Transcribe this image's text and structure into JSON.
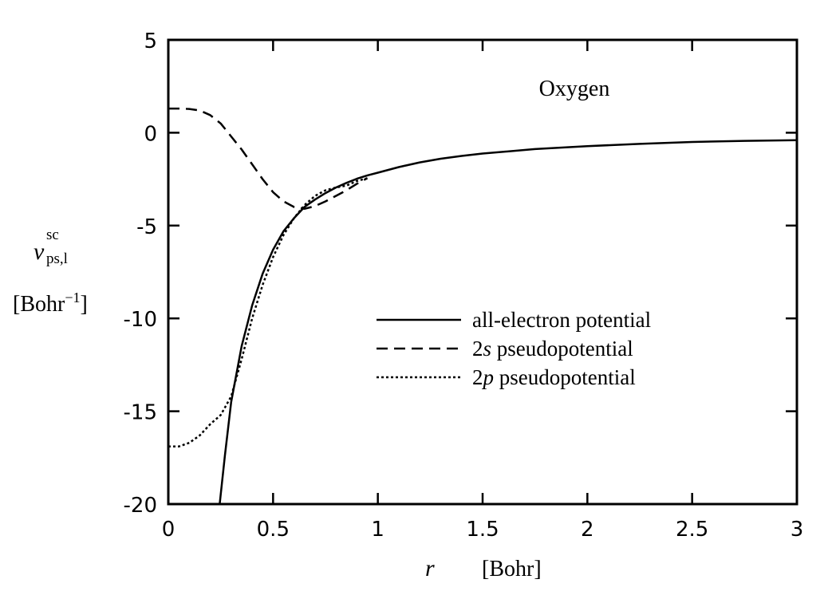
{
  "chart_data": {
    "type": "line",
    "annotation": "Oxygen",
    "xlabel_var": "r",
    "xlabel_unit": "[Bohr]",
    "ylabel_var": "v",
    "ylabel_sup": "sc",
    "ylabel_sub": "ps,l",
    "ylabel_unit": "[Bohr",
    "ylabel_unit_exp": "−1",
    "ylabel_unit_close": "]",
    "xlim": [
      0,
      3
    ],
    "ylim": [
      -20,
      5
    ],
    "x_ticks": [
      0,
      0.5,
      1,
      1.5,
      2,
      2.5,
      3
    ],
    "x_tick_labels": [
      "0",
      "0.5",
      "1",
      "1.5",
      "2",
      "2.5",
      "3"
    ],
    "y_ticks": [
      5,
      0,
      -5,
      -10,
      -15,
      -20
    ],
    "y_tick_labels": [
      "5",
      "0",
      "-5",
      "-10",
      "-15",
      "-20"
    ],
    "grid": false,
    "legend_position": "center-right",
    "series": [
      {
        "name": "all-electron potential",
        "name_prefix": "",
        "name_var": "",
        "name_rest": "all-electron potential",
        "dash": "solid",
        "x": [
          0.245,
          0.27,
          0.3,
          0.35,
          0.4,
          0.45,
          0.5,
          0.55,
          0.6,
          0.65,
          0.7,
          0.75,
          0.8,
          0.85,
          0.9,
          0.95,
          1.0,
          1.1,
          1.2,
          1.3,
          1.4,
          1.5,
          1.75,
          2.0,
          2.25,
          2.5,
          2.75,
          3.0
        ],
        "y": [
          -20,
          -17.4,
          -14.5,
          -11.5,
          -9.3,
          -7.6,
          -6.3,
          -5.3,
          -4.6,
          -4.0,
          -3.6,
          -3.25,
          -2.95,
          -2.7,
          -2.48,
          -2.3,
          -2.15,
          -1.85,
          -1.6,
          -1.4,
          -1.25,
          -1.12,
          -0.88,
          -0.72,
          -0.6,
          -0.5,
          -0.44,
          -0.4
        ]
      },
      {
        "name": "2s pseudopotential",
        "name_prefix": "2",
        "name_var": "s",
        "name_rest": " pseudopotential",
        "dash": "dashed",
        "x": [
          0.0,
          0.05,
          0.1,
          0.15,
          0.2,
          0.25,
          0.3,
          0.35,
          0.4,
          0.45,
          0.5,
          0.55,
          0.6,
          0.65,
          0.7,
          0.75,
          0.8,
          0.85,
          0.9,
          0.95
        ],
        "y": [
          1.3,
          1.3,
          1.28,
          1.2,
          0.95,
          0.5,
          -0.2,
          -0.9,
          -1.7,
          -2.5,
          -3.2,
          -3.7,
          -4.0,
          -4.1,
          -3.95,
          -3.7,
          -3.4,
          -3.1,
          -2.75,
          -2.45
        ]
      },
      {
        "name": "2p pseudopotential",
        "name_prefix": "2",
        "name_var": "p",
        "name_rest": " pseudopotential",
        "dash": "dotted",
        "x": [
          0.0,
          0.05,
          0.1,
          0.15,
          0.2,
          0.25,
          0.3,
          0.35,
          0.4,
          0.45,
          0.5,
          0.55,
          0.6,
          0.65,
          0.7,
          0.75,
          0.8,
          0.85,
          0.9,
          0.95
        ],
        "y": [
          -16.9,
          -16.9,
          -16.7,
          -16.3,
          -15.7,
          -15.2,
          -14.2,
          -12.2,
          -10.0,
          -8.2,
          -6.7,
          -5.5,
          -4.6,
          -3.9,
          -3.4,
          -3.1,
          -2.95,
          -2.85,
          -2.6,
          -2.45
        ]
      }
    ]
  }
}
